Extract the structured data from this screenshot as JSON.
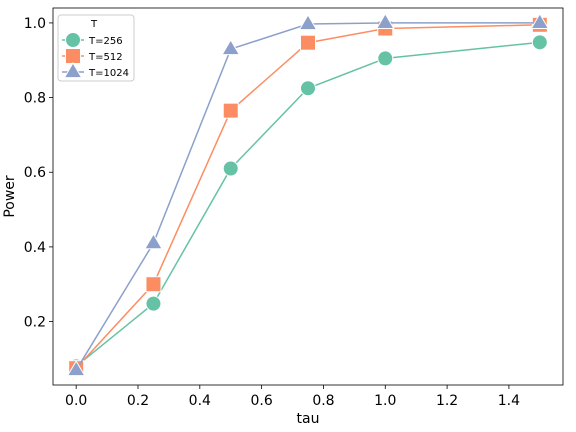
{
  "chart_data": {
    "type": "line",
    "title": "",
    "xlabel": "tau",
    "ylabel": "Power",
    "xlim": [
      -0.075,
      1.575
    ],
    "ylim": [
      0.03,
      1.04
    ],
    "xticks": [
      0.0,
      0.2,
      0.4,
      0.6,
      0.8,
      1.0,
      1.2,
      1.4
    ],
    "xtick_labels": [
      "0.0",
      "0.2",
      "0.4",
      "0.6",
      "0.8",
      "1.0",
      "1.2",
      "1.4"
    ],
    "yticks": [
      0.2,
      0.4,
      0.6,
      0.8,
      1.0
    ],
    "ytick_labels": [
      "0.2",
      "0.4",
      "0.6",
      "0.8",
      "1.0"
    ],
    "grid": false,
    "legend": {
      "title": "T",
      "placement": "top-left"
    },
    "x": [
      0.0,
      0.25,
      0.5,
      0.75,
      1.0,
      1.5
    ],
    "series": [
      {
        "name": "T=256",
        "marker": "circle",
        "color": "#66c2a5",
        "values": [
          0.08,
          0.248,
          0.61,
          0.825,
          0.905,
          0.948
        ]
      },
      {
        "name": "T=512",
        "marker": "square",
        "color": "#fc8d62",
        "values": [
          0.075,
          0.3,
          0.765,
          0.947,
          0.985,
          0.995
        ]
      },
      {
        "name": "T=1024",
        "marker": "triangle",
        "color": "#8da0cb",
        "values": [
          0.07,
          0.41,
          0.93,
          0.997,
          1.0,
          1.0
        ]
      }
    ]
  }
}
